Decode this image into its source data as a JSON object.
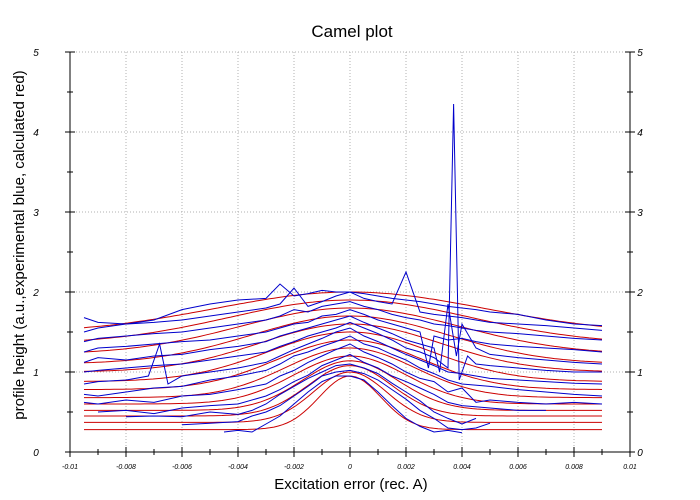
{
  "chart_data": {
    "type": "line",
    "title": "Camel plot",
    "xlabel": "Excitation error (rec. A)",
    "ylabel": "profile height (a.u.,experimental blue, calculated red)",
    "xlim": [
      -0.01,
      0.01
    ],
    "ylim": [
      0,
      5
    ],
    "x_ticks": [
      "-0.01",
      "-0.008",
      "-0.006",
      "-0.004",
      "-0.002",
      "0",
      "0.002",
      "0.004",
      "0.006",
      "0.008",
      "0.01"
    ],
    "y_ticks": [
      "0",
      "1",
      "2",
      "3",
      "4",
      "5"
    ],
    "grid": true,
    "mirror_y_axis": true,
    "colors": {
      "calculated": "#cc0000",
      "experimental": "#0000cc",
      "grid": "#b0b0b0"
    },
    "x_range_data": [
      -0.0095,
      0.009
    ],
    "series_calculated": [
      {
        "baseline": 0.28,
        "peak": 0.95,
        "sigma": 0.0011,
        "x": [
          -0.0095,
          0.009
        ]
      },
      {
        "baseline": 0.37,
        "peak": 1.0,
        "sigma": 0.0013,
        "x": [
          -0.0095,
          0.009
        ]
      },
      {
        "baseline": 0.45,
        "peak": 1.08,
        "sigma": 0.0015,
        "x": [
          -0.0095,
          0.009
        ]
      },
      {
        "baseline": 0.52,
        "peak": 1.14,
        "sigma": 0.0017,
        "x": [
          -0.0095,
          0.009
        ]
      },
      {
        "baseline": 0.6,
        "peak": 1.2,
        "sigma": 0.002,
        "x": [
          -0.0095,
          0.009
        ]
      },
      {
        "baseline": 0.68,
        "peak": 1.3,
        "sigma": 0.0023,
        "x": [
          -0.0095,
          0.009
        ]
      },
      {
        "baseline": 0.78,
        "peak": 1.4,
        "sigma": 0.0026,
        "x": [
          -0.0095,
          0.009
        ]
      },
      {
        "baseline": 0.88,
        "peak": 1.5,
        "sigma": 0.0029,
        "x": [
          -0.0095,
          0.009
        ]
      },
      {
        "baseline": 1.0,
        "peak": 1.6,
        "sigma": 0.0032,
        "x": [
          -0.0095,
          0.009
        ]
      },
      {
        "baseline": 1.1,
        "peak": 1.7,
        "sigma": 0.0035,
        "x": [
          -0.0095,
          0.009
        ]
      },
      {
        "baseline": 1.22,
        "peak": 1.8,
        "sigma": 0.0039,
        "x": [
          -0.0095,
          0.009
        ]
      },
      {
        "baseline": 1.35,
        "peak": 1.9,
        "sigma": 0.0043,
        "x": [
          -0.0095,
          0.009
        ]
      },
      {
        "baseline": 1.48,
        "peak": 2.0,
        "sigma": 0.0048,
        "x": [
          -0.0095,
          0.009
        ]
      }
    ],
    "series_experimental": [
      {
        "x": [
          -0.0045,
          -0.004,
          -0.0035,
          -0.003,
          -0.0025,
          -0.002,
          -0.0015,
          -0.001,
          -0.0005,
          0,
          0.0005,
          0.001,
          0.0015,
          0.002,
          0.0025,
          0.003,
          0.0035,
          0.004
        ],
        "y": [
          0.25,
          0.27,
          0.25,
          0.35,
          0.45,
          0.6,
          0.75,
          0.88,
          0.95,
          0.95,
          0.9,
          0.75,
          0.58,
          0.42,
          0.32,
          0.25,
          0.27,
          0.24
        ]
      },
      {
        "x": [
          -0.006,
          -0.005,
          -0.004,
          -0.0035,
          -0.003,
          -0.0025,
          -0.002,
          -0.0015,
          -0.001,
          -0.0005,
          0,
          0.0005,
          0.001,
          0.0015,
          0.002,
          0.0025,
          0.003,
          0.0035,
          0.004,
          0.0045,
          0.005
        ],
        "y": [
          0.34,
          0.36,
          0.38,
          0.45,
          0.5,
          0.58,
          0.7,
          0.82,
          0.95,
          1.0,
          1.02,
          0.98,
          0.9,
          0.78,
          0.66,
          0.52,
          0.42,
          0.3,
          0.28,
          0.3,
          0.36
        ]
      },
      {
        "x": [
          -0.008,
          -0.007,
          -0.006,
          -0.005,
          -0.004,
          -0.0035,
          -0.003,
          -0.0025,
          -0.002,
          -0.0015,
          -0.001,
          -0.0005,
          0,
          0.0005,
          0.001,
          0.0015,
          0.002,
          0.0025,
          0.003,
          0.0035,
          0.004,
          0.0045
        ],
        "y": [
          0.44,
          0.45,
          0.44,
          0.5,
          0.47,
          0.52,
          0.6,
          0.72,
          0.82,
          0.92,
          1.0,
          1.08,
          1.1,
          1.05,
          0.98,
          0.86,
          0.75,
          0.64,
          0.5,
          0.42,
          0.35,
          0.42
        ]
      },
      {
        "x": [
          -0.009,
          -0.008,
          -0.007,
          -0.006,
          -0.005,
          -0.004,
          -0.003,
          -0.0025,
          -0.002,
          -0.0015,
          -0.001,
          -0.0005,
          0,
          0.0005,
          0.001,
          0.0015,
          0.002,
          0.0025,
          0.003,
          0.0035,
          0.004,
          0.005,
          0.006,
          0.007
        ],
        "y": [
          0.5,
          0.52,
          0.48,
          0.55,
          0.58,
          0.6,
          0.7,
          0.78,
          0.88,
          0.96,
          1.08,
          1.15,
          1.22,
          1.12,
          1.05,
          0.95,
          0.88,
          0.8,
          0.72,
          0.62,
          0.58,
          0.55,
          0.52,
          0.52
        ]
      },
      {
        "x": [
          -0.0095,
          -0.009,
          -0.008,
          -0.007,
          -0.006,
          -0.005,
          -0.004,
          -0.003,
          -0.0025,
          -0.002,
          -0.0015,
          -0.001,
          -0.0005,
          0,
          0.0005,
          0.001,
          0.0015,
          0.002,
          0.0025,
          0.003,
          0.0035,
          0.004,
          0.0045,
          0.005,
          0.006,
          0.007,
          0.008,
          0.009
        ],
        "y": [
          0.62,
          0.6,
          0.65,
          0.62,
          0.7,
          0.72,
          0.78,
          0.85,
          0.95,
          1.02,
          1.12,
          1.2,
          1.28,
          1.35,
          1.25,
          1.18,
          1.1,
          1.0,
          0.92,
          0.88,
          0.75,
          0.8,
          0.62,
          0.65,
          0.62,
          0.6,
          0.62,
          0.6
        ]
      },
      {
        "x": [
          -0.0095,
          -0.009,
          -0.008,
          -0.007,
          -0.006,
          -0.005,
          -0.004,
          -0.003,
          -0.0025,
          -0.002,
          -0.0015,
          -0.001,
          -0.0005,
          0,
          0.0005,
          0.001,
          0.0015,
          0.002,
          0.0025,
          0.003,
          0.0035,
          0.004,
          0.005,
          0.006,
          0.007,
          0.008,
          0.009
        ],
        "y": [
          0.72,
          0.7,
          0.75,
          0.8,
          0.82,
          0.9,
          0.95,
          1.02,
          1.1,
          1.2,
          1.25,
          1.32,
          1.38,
          1.45,
          1.35,
          1.3,
          1.22,
          1.15,
          1.05,
          0.98,
          0.9,
          0.85,
          0.82,
          0.78,
          0.75,
          0.72,
          0.7
        ]
      },
      {
        "x": [
          -0.0095,
          -0.009,
          -0.008,
          -0.0072,
          -0.0068,
          -0.0065,
          -0.006,
          -0.005,
          -0.004,
          -0.003,
          -0.0025,
          -0.002,
          -0.0015,
          -0.001,
          -0.0005,
          0,
          0.0005,
          0.001,
          0.0015,
          0.002,
          0.0025,
          0.003,
          0.0035,
          0.004,
          0.005,
          0.006,
          0.007,
          0.008,
          0.009
        ],
        "y": [
          0.85,
          0.88,
          0.9,
          0.95,
          1.35,
          0.85,
          0.95,
          1.0,
          1.05,
          1.12,
          1.2,
          1.28,
          1.35,
          1.42,
          1.5,
          1.55,
          1.45,
          1.38,
          1.3,
          1.22,
          1.15,
          1.08,
          1.0,
          0.98,
          0.92,
          0.9,
          0.88,
          0.86,
          0.85
        ]
      },
      {
        "x": [
          -0.0095,
          -0.009,
          -0.008,
          -0.007,
          -0.006,
          -0.005,
          -0.004,
          -0.003,
          -0.0025,
          -0.002,
          -0.0015,
          -0.001,
          -0.0005,
          0,
          0.0005,
          0.001,
          0.0015,
          0.002,
          0.0025,
          0.003,
          0.0035,
          0.0037,
          0.0039,
          0.0042,
          0.0045,
          0.005,
          0.006,
          0.007,
          0.008,
          0.009
        ],
        "y": [
          1.0,
          1.02,
          1.05,
          1.08,
          1.1,
          1.15,
          1.2,
          1.25,
          1.32,
          1.38,
          1.45,
          1.5,
          1.55,
          1.62,
          1.55,
          1.48,
          1.4,
          1.3,
          1.25,
          1.18,
          1.05,
          4.35,
          0.9,
          1.2,
          1.1,
          1.08,
          1.05,
          1.02,
          1.0,
          1.0
        ]
      },
      {
        "x": [
          -0.0095,
          -0.009,
          -0.008,
          -0.007,
          -0.006,
          -0.005,
          -0.004,
          -0.003,
          -0.0025,
          -0.002,
          -0.0015,
          -0.001,
          -0.0005,
          0,
          0.0005,
          0.001,
          0.0015,
          0.002,
          0.0025,
          0.003,
          0.0032,
          0.0035,
          0.0038,
          0.004,
          0.0045,
          0.005,
          0.006,
          0.007,
          0.008,
          0.009
        ],
        "y": [
          1.12,
          1.18,
          1.15,
          1.2,
          1.22,
          1.28,
          1.32,
          1.38,
          1.45,
          1.5,
          1.55,
          1.6,
          1.65,
          1.7,
          1.62,
          1.55,
          1.48,
          1.4,
          1.35,
          1.3,
          1.0,
          1.85,
          1.2,
          1.6,
          1.3,
          1.22,
          1.18,
          1.15,
          1.12,
          1.1
        ]
      },
      {
        "x": [
          -0.0095,
          -0.009,
          -0.008,
          -0.007,
          -0.006,
          -0.005,
          -0.004,
          -0.003,
          -0.0025,
          -0.002,
          -0.0015,
          -0.001,
          -0.0005,
          0,
          0.0005,
          0.001,
          0.0015,
          0.002,
          0.0025,
          0.0028,
          0.003,
          0.0035,
          0.004,
          0.0045,
          0.005,
          0.006,
          0.007,
          0.008,
          0.009
        ],
        "y": [
          1.25,
          1.3,
          1.32,
          1.35,
          1.38,
          1.4,
          1.45,
          1.5,
          1.55,
          1.6,
          1.62,
          1.7,
          1.72,
          1.78,
          1.72,
          1.65,
          1.6,
          1.55,
          1.5,
          1.05,
          1.45,
          1.4,
          1.42,
          1.38,
          1.35,
          1.32,
          1.3,
          1.28,
          1.25
        ]
      },
      {
        "x": [
          -0.0095,
          -0.009,
          -0.008,
          -0.007,
          -0.006,
          -0.005,
          -0.004,
          -0.003,
          -0.0025,
          -0.002,
          -0.0015,
          -0.001,
          -0.0005,
          0,
          0.0005,
          0.001,
          0.0015,
          0.002,
          0.0025,
          0.003,
          0.0035,
          0.004,
          0.0045,
          0.005,
          0.006,
          0.007,
          0.008,
          0.009
        ],
        "y": [
          1.38,
          1.42,
          1.45,
          1.48,
          1.5,
          1.55,
          1.6,
          1.65,
          1.7,
          1.78,
          1.75,
          1.82,
          1.85,
          1.88,
          1.82,
          1.78,
          1.72,
          1.68,
          1.65,
          1.6,
          1.58,
          1.55,
          1.52,
          1.5,
          1.48,
          1.45,
          1.42,
          1.4
        ]
      },
      {
        "x": [
          -0.0095,
          -0.009,
          -0.008,
          -0.007,
          -0.006,
          -0.005,
          -0.004,
          -0.003,
          -0.0025,
          -0.002,
          -0.0015,
          -0.001,
          -0.0005,
          0,
          0.0005,
          0.001,
          0.0015,
          0.002,
          0.0025,
          0.003,
          0.0035,
          0.004,
          0.0045,
          0.005,
          0.006,
          0.007,
          0.008,
          0.009
        ],
        "y": [
          1.5,
          1.55,
          1.6,
          1.62,
          1.65,
          1.7,
          1.75,
          1.8,
          1.85,
          2.05,
          1.82,
          1.88,
          1.95,
          2.0,
          1.92,
          1.88,
          1.85,
          2.25,
          1.75,
          1.72,
          1.7,
          1.68,
          1.65,
          1.62,
          1.6,
          1.58,
          1.55,
          1.52
        ]
      },
      {
        "x": [
          -0.0095,
          -0.009,
          -0.008,
          -0.007,
          -0.006,
          -0.005,
          -0.004,
          -0.003,
          -0.0025,
          -0.002,
          -0.0015,
          -0.001,
          -0.0005,
          0,
          0.0005,
          0.001,
          0.0015,
          0.002,
          0.0025,
          0.003,
          0.0035,
          0.004,
          0.0045,
          0.005,
          0.006,
          0.007,
          0.008,
          0.009
        ],
        "y": [
          1.68,
          1.62,
          1.6,
          1.65,
          1.78,
          1.85,
          1.9,
          1.92,
          2.1,
          1.95,
          1.98,
          2.02,
          2.0,
          2.0,
          1.98,
          1.95,
          1.92,
          1.9,
          1.88,
          1.85,
          1.82,
          1.8,
          1.78,
          1.75,
          1.72,
          1.65,
          1.6,
          1.58
        ]
      }
    ]
  }
}
